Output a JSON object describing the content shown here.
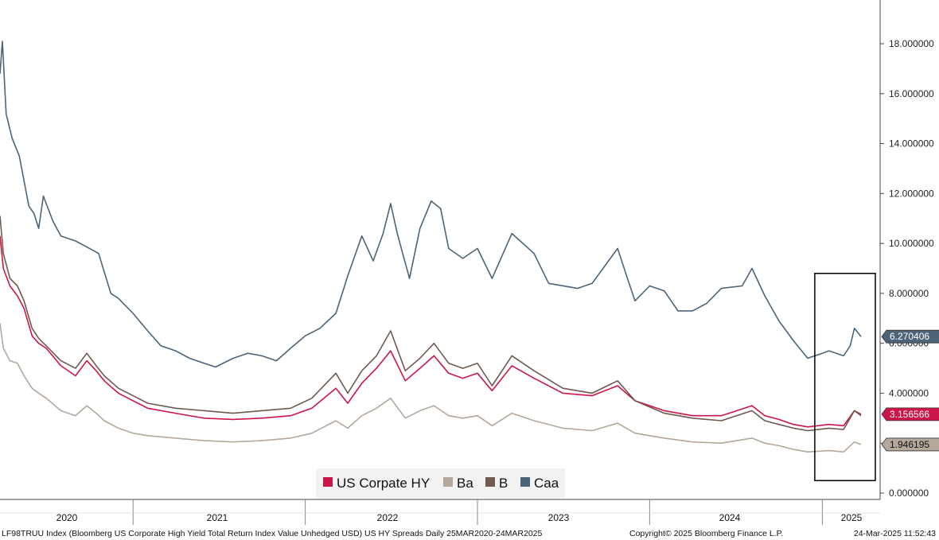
{
  "chart_data": {
    "type": "line",
    "xlabel": "",
    "ylabel": "",
    "ylim": [
      0,
      19.5
    ],
    "y_ticks": [
      "0.000000",
      "2.000000",
      "4.000000",
      "6.000000",
      "8.000000",
      "10.000000",
      "12.000000",
      "14.000000",
      "16.000000",
      "18.000000"
    ],
    "x_ticks": [
      "2020",
      "2021",
      "2022",
      "2023",
      "2024",
      "2025"
    ],
    "x_range": [
      "2020-03-25",
      "2025-03-24"
    ],
    "grid": false,
    "legend_position": "bottom-center",
    "highlight_box": {
      "x_start": "2024-12-16",
      "x_end": "2025-03-24",
      "y_start": 0.5,
      "y_end": 8.8
    },
    "series": [
      {
        "name": "US Corpate HY",
        "color": "#cc1548",
        "last_label": "3.156566",
        "points": [
          [
            "2020-03-25",
            10.3
          ],
          [
            "2020-04-01",
            9.0
          ],
          [
            "2020-04-15",
            8.3
          ],
          [
            "2020-05-01",
            7.9
          ],
          [
            "2020-05-15",
            7.4
          ],
          [
            "2020-06-01",
            6.3
          ],
          [
            "2020-06-15",
            6.0
          ],
          [
            "2020-07-01",
            5.8
          ],
          [
            "2020-08-01",
            5.1
          ],
          [
            "2020-09-01",
            4.7
          ],
          [
            "2020-09-25",
            5.3
          ],
          [
            "2020-10-15",
            4.9
          ],
          [
            "2020-11-01",
            4.5
          ],
          [
            "2020-12-01",
            4.0
          ],
          [
            "2021-01-01",
            3.7
          ],
          [
            "2021-02-01",
            3.4
          ],
          [
            "2021-04-01",
            3.2
          ],
          [
            "2021-06-01",
            3.0
          ],
          [
            "2021-08-01",
            2.95
          ],
          [
            "2021-10-01",
            3.0
          ],
          [
            "2021-12-01",
            3.1
          ],
          [
            "2022-01-15",
            3.4
          ],
          [
            "2022-03-07",
            4.2
          ],
          [
            "2022-04-01",
            3.6
          ],
          [
            "2022-05-01",
            4.4
          ],
          [
            "2022-06-01",
            5.0
          ],
          [
            "2022-07-01",
            5.7
          ],
          [
            "2022-08-01",
            4.5
          ],
          [
            "2022-09-01",
            5.0
          ],
          [
            "2022-10-01",
            5.5
          ],
          [
            "2022-11-01",
            4.8
          ],
          [
            "2022-12-01",
            4.6
          ],
          [
            "2023-01-01",
            4.8
          ],
          [
            "2023-02-01",
            4.1
          ],
          [
            "2023-03-15",
            5.1
          ],
          [
            "2023-05-01",
            4.6
          ],
          [
            "2023-07-01",
            4.0
          ],
          [
            "2023-09-01",
            3.9
          ],
          [
            "2023-10-25",
            4.3
          ],
          [
            "2023-12-01",
            3.7
          ],
          [
            "2024-02-01",
            3.3
          ],
          [
            "2024-04-01",
            3.1
          ],
          [
            "2024-06-01",
            3.1
          ],
          [
            "2024-08-05",
            3.5
          ],
          [
            "2024-09-01",
            3.1
          ],
          [
            "2024-10-01",
            2.95
          ],
          [
            "2024-11-01",
            2.75
          ],
          [
            "2024-12-01",
            2.65
          ],
          [
            "2025-01-15",
            2.75
          ],
          [
            "2025-02-15",
            2.7
          ],
          [
            "2025-03-10",
            3.3
          ],
          [
            "2025-03-24",
            3.157
          ]
        ]
      },
      {
        "name": "Ba",
        "color": "#b3a89b",
        "last_label": "1.946195",
        "points": [
          [
            "2020-03-25",
            6.8
          ],
          [
            "2020-04-01",
            5.8
          ],
          [
            "2020-04-15",
            5.3
          ],
          [
            "2020-05-01",
            5.2
          ],
          [
            "2020-05-15",
            4.7
          ],
          [
            "2020-06-01",
            4.2
          ],
          [
            "2020-06-15",
            4.0
          ],
          [
            "2020-07-01",
            3.8
          ],
          [
            "2020-08-01",
            3.3
          ],
          [
            "2020-09-01",
            3.1
          ],
          [
            "2020-09-25",
            3.5
          ],
          [
            "2020-10-15",
            3.2
          ],
          [
            "2020-11-01",
            2.9
          ],
          [
            "2020-12-01",
            2.6
          ],
          [
            "2021-01-01",
            2.4
          ],
          [
            "2021-02-01",
            2.3
          ],
          [
            "2021-04-01",
            2.2
          ],
          [
            "2021-06-01",
            2.1
          ],
          [
            "2021-08-01",
            2.05
          ],
          [
            "2021-10-01",
            2.1
          ],
          [
            "2021-12-01",
            2.2
          ],
          [
            "2022-01-15",
            2.4
          ],
          [
            "2022-03-07",
            2.9
          ],
          [
            "2022-04-01",
            2.6
          ],
          [
            "2022-05-01",
            3.1
          ],
          [
            "2022-06-01",
            3.4
          ],
          [
            "2022-07-01",
            3.8
          ],
          [
            "2022-08-01",
            3.0
          ],
          [
            "2022-09-01",
            3.3
          ],
          [
            "2022-10-01",
            3.5
          ],
          [
            "2022-11-01",
            3.1
          ],
          [
            "2022-12-01",
            3.0
          ],
          [
            "2023-01-01",
            3.1
          ],
          [
            "2023-02-01",
            2.7
          ],
          [
            "2023-03-15",
            3.2
          ],
          [
            "2023-05-01",
            2.9
          ],
          [
            "2023-07-01",
            2.6
          ],
          [
            "2023-09-01",
            2.5
          ],
          [
            "2023-10-25",
            2.8
          ],
          [
            "2023-12-01",
            2.4
          ],
          [
            "2024-02-01",
            2.2
          ],
          [
            "2024-04-01",
            2.05
          ],
          [
            "2024-06-01",
            2.0
          ],
          [
            "2024-08-05",
            2.2
          ],
          [
            "2024-09-01",
            2.0
          ],
          [
            "2024-10-01",
            1.9
          ],
          [
            "2024-11-01",
            1.75
          ],
          [
            "2024-12-01",
            1.65
          ],
          [
            "2025-01-15",
            1.7
          ],
          [
            "2025-02-15",
            1.65
          ],
          [
            "2025-03-10",
            2.05
          ],
          [
            "2025-03-24",
            1.946
          ]
        ]
      },
      {
        "name": "B",
        "color": "#6e5a4e",
        "last_label": "",
        "points": [
          [
            "2020-03-25",
            11.1
          ],
          [
            "2020-04-01",
            9.6
          ],
          [
            "2020-04-15",
            8.6
          ],
          [
            "2020-05-01",
            8.3
          ],
          [
            "2020-05-15",
            7.7
          ],
          [
            "2020-06-01",
            6.6
          ],
          [
            "2020-06-15",
            6.2
          ],
          [
            "2020-07-01",
            5.9
          ],
          [
            "2020-08-01",
            5.3
          ],
          [
            "2020-09-01",
            5.0
          ],
          [
            "2020-09-25",
            5.6
          ],
          [
            "2020-10-15",
            5.1
          ],
          [
            "2020-11-01",
            4.7
          ],
          [
            "2020-12-01",
            4.2
          ],
          [
            "2021-01-01",
            3.9
          ],
          [
            "2021-02-01",
            3.6
          ],
          [
            "2021-04-01",
            3.4
          ],
          [
            "2021-06-01",
            3.3
          ],
          [
            "2021-08-01",
            3.2
          ],
          [
            "2021-10-01",
            3.3
          ],
          [
            "2021-12-01",
            3.4
          ],
          [
            "2022-01-15",
            3.8
          ],
          [
            "2022-03-07",
            4.8
          ],
          [
            "2022-04-01",
            4.0
          ],
          [
            "2022-05-01",
            4.9
          ],
          [
            "2022-06-01",
            5.5
          ],
          [
            "2022-07-01",
            6.5
          ],
          [
            "2022-08-01",
            4.9
          ],
          [
            "2022-09-01",
            5.4
          ],
          [
            "2022-10-01",
            6.0
          ],
          [
            "2022-11-01",
            5.2
          ],
          [
            "2022-12-01",
            5.0
          ],
          [
            "2023-01-01",
            5.2
          ],
          [
            "2023-02-01",
            4.3
          ],
          [
            "2023-03-15",
            5.5
          ],
          [
            "2023-05-01",
            4.9
          ],
          [
            "2023-07-01",
            4.2
          ],
          [
            "2023-09-01",
            4.0
          ],
          [
            "2023-10-25",
            4.5
          ],
          [
            "2023-12-01",
            3.7
          ],
          [
            "2024-02-01",
            3.2
          ],
          [
            "2024-04-01",
            3.0
          ],
          [
            "2024-06-01",
            2.9
          ],
          [
            "2024-08-05",
            3.3
          ],
          [
            "2024-09-01",
            2.9
          ],
          [
            "2024-10-01",
            2.75
          ],
          [
            "2024-11-01",
            2.6
          ],
          [
            "2024-12-01",
            2.5
          ],
          [
            "2025-01-15",
            2.6
          ],
          [
            "2025-02-15",
            2.55
          ],
          [
            "2025-03-10",
            3.3
          ],
          [
            "2025-03-24",
            3.1
          ]
        ]
      },
      {
        "name": "Caa",
        "color": "#4d6478",
        "last_label": "6.270406",
        "points": [
          [
            "2020-03-25",
            16.8
          ],
          [
            "2020-03-30",
            18.1
          ],
          [
            "2020-04-07",
            15.2
          ],
          [
            "2020-04-12",
            14.8
          ],
          [
            "2020-04-20",
            14.2
          ],
          [
            "2020-05-05",
            13.5
          ],
          [
            "2020-05-25",
            11.5
          ],
          [
            "2020-06-05",
            11.2
          ],
          [
            "2020-06-15",
            10.6
          ],
          [
            "2020-06-25",
            11.9
          ],
          [
            "2020-07-15",
            10.9
          ],
          [
            "2020-08-01",
            10.3
          ],
          [
            "2020-09-01",
            10.1
          ],
          [
            "2020-10-01",
            9.8
          ],
          [
            "2020-10-20",
            9.6
          ],
          [
            "2020-11-15",
            8.0
          ],
          [
            "2020-12-01",
            7.8
          ],
          [
            "2021-01-01",
            7.2
          ],
          [
            "2021-02-01",
            6.5
          ],
          [
            "2021-03-01",
            5.9
          ],
          [
            "2021-04-01",
            5.7
          ],
          [
            "2021-05-01",
            5.4
          ],
          [
            "2021-06-01",
            5.2
          ],
          [
            "2021-06-25",
            5.05
          ],
          [
            "2021-08-01",
            5.4
          ],
          [
            "2021-09-01",
            5.6
          ],
          [
            "2021-10-01",
            5.5
          ],
          [
            "2021-11-01",
            5.3
          ],
          [
            "2021-12-01",
            5.8
          ],
          [
            "2022-01-01",
            6.3
          ],
          [
            "2022-02-01",
            6.6
          ],
          [
            "2022-03-07",
            7.2
          ],
          [
            "2022-04-01",
            8.7
          ],
          [
            "2022-05-01",
            10.3
          ],
          [
            "2022-05-25",
            9.3
          ],
          [
            "2022-06-15",
            10.4
          ],
          [
            "2022-07-01",
            11.6
          ],
          [
            "2022-07-15",
            10.4
          ],
          [
            "2022-08-10",
            8.6
          ],
          [
            "2022-09-01",
            10.6
          ],
          [
            "2022-09-25",
            11.7
          ],
          [
            "2022-10-15",
            11.4
          ],
          [
            "2022-11-01",
            9.8
          ],
          [
            "2022-12-01",
            9.4
          ],
          [
            "2023-01-01",
            9.8
          ],
          [
            "2023-02-01",
            8.6
          ],
          [
            "2023-03-15",
            10.4
          ],
          [
            "2023-05-01",
            9.6
          ],
          [
            "2023-06-01",
            8.4
          ],
          [
            "2023-08-01",
            8.2
          ],
          [
            "2023-09-01",
            8.4
          ],
          [
            "2023-10-25",
            9.8
          ],
          [
            "2023-11-15",
            8.6
          ],
          [
            "2023-12-01",
            7.7
          ],
          [
            "2024-01-01",
            8.3
          ],
          [
            "2024-02-01",
            8.1
          ],
          [
            "2024-03-01",
            7.3
          ],
          [
            "2024-04-01",
            7.3
          ],
          [
            "2024-05-01",
            7.6
          ],
          [
            "2024-06-01",
            8.2
          ],
          [
            "2024-07-15",
            8.3
          ],
          [
            "2024-08-05",
            9.0
          ],
          [
            "2024-09-01",
            7.9
          ],
          [
            "2024-10-01",
            6.9
          ],
          [
            "2024-11-01",
            6.1
          ],
          [
            "2024-12-01",
            5.4
          ],
          [
            "2025-01-01",
            5.6
          ],
          [
            "2025-01-15",
            5.7
          ],
          [
            "2025-02-15",
            5.5
          ],
          [
            "2025-03-01",
            5.9
          ],
          [
            "2025-03-10",
            6.6
          ],
          [
            "2025-03-24",
            6.27
          ]
        ]
      }
    ]
  },
  "footer": {
    "left": "LF98TRUU Index (Bloomberg US Corporate High Yield Total Return Index Value Unhedged USD) US HY Spreads  Daily 25MAR2020-24MAR2025",
    "center": "Copyright© 2025 Bloomberg Finance L.P.",
    "right": "24-Mar-2025 11:52:43"
  },
  "colors": {
    "axis": "#444444",
    "legend_bg": "#f2f2f2",
    "box": "#000000"
  }
}
